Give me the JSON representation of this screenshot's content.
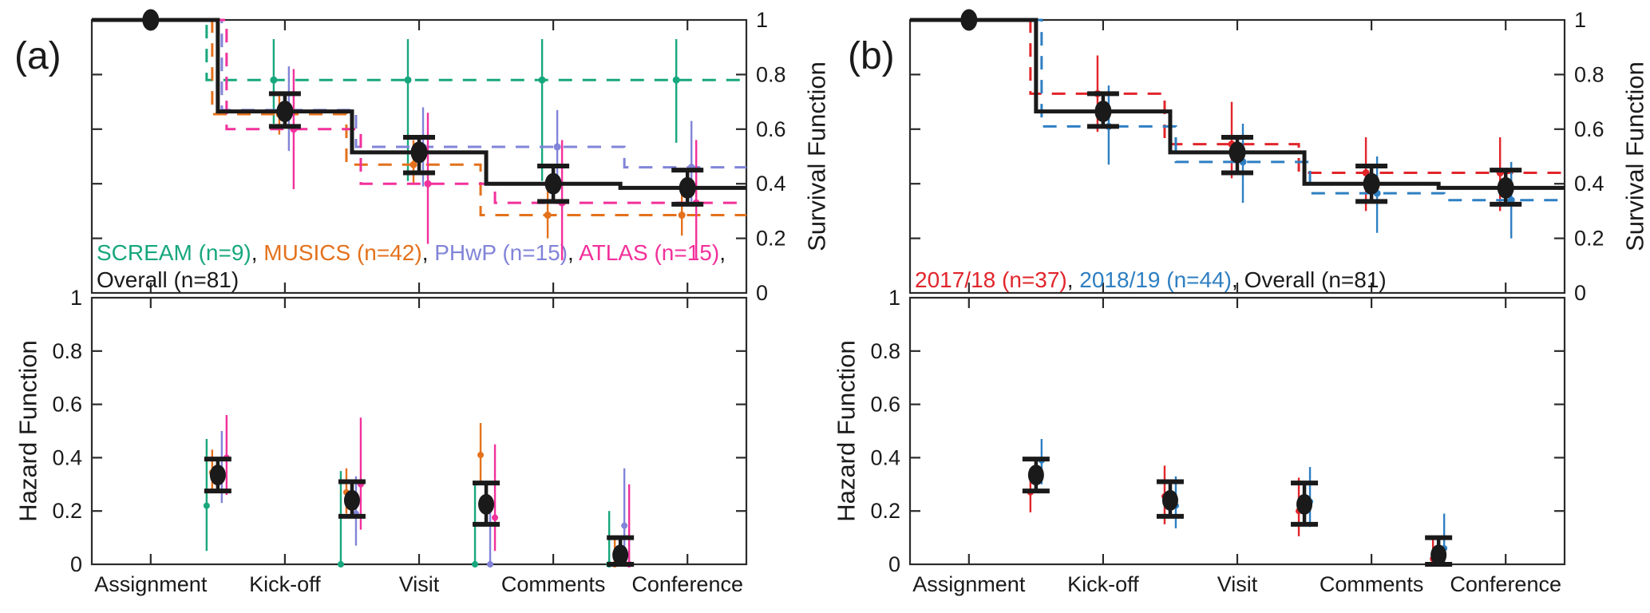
{
  "chart_data": {
    "type": "step-survival-with-hazard-errorbars",
    "description": "Two-panel figure; each panel has a Kaplan-Meier style step Survival Function (top) and discrete Hazard Function points with error bars (bottom).",
    "categories": [
      "Assignment",
      "Kick-off",
      "Visit",
      "Comments",
      "Conference"
    ],
    "ylim": [
      0,
      1
    ],
    "yticks": [
      0,
      0.2,
      0.4,
      0.6,
      0.8,
      1
    ],
    "ytick_labels": [
      "0",
      "0.2",
      "0.4",
      "0.6",
      "0.8",
      "1"
    ],
    "survival_ylabel": "Survival Function",
    "hazard_ylabel": "Hazard Function",
    "grid": false,
    "legend_position": "inside-bottom-left-of-survival-plot",
    "style": {
      "background": "#ffffff",
      "axis_color": "#2b2b2b",
      "text_color": "#1a1a1a",
      "green": "#17a77d",
      "orange": "#e4711c",
      "purple": "#8184d8",
      "magenta": "#f2309b",
      "red": "#e1252b",
      "blue": "#2e7fc2",
      "black": "#1a1a1a"
    },
    "panels": [
      {
        "label": "(a)",
        "legend_lines": [
          [
            {
              "text": "SCREAM (n=9)",
              "color": "#17a77d"
            },
            {
              "text": ", ",
              "color": "#1a1a1a"
            },
            {
              "text": "MUSICS (n=42)",
              "color": "#e4711c"
            },
            {
              "text": ", ",
              "color": "#1a1a1a"
            },
            {
              "text": "PHwP (n=15)",
              "color": "#8184d8"
            },
            {
              "text": ", ",
              "color": "#1a1a1a"
            },
            {
              "text": "ATLAS (n=15)",
              "color": "#f2309b"
            },
            {
              "text": ",",
              "color": "#1a1a1a"
            }
          ],
          [
            {
              "text": "Overall (n=81)",
              "color": "#1a1a1a"
            }
          ]
        ],
        "survival_series": [
          {
            "name": "SCREAM",
            "label": "SCREAM (n=9)",
            "color": "#17a77d",
            "dashed": true,
            "jitter": -14,
            "levels": [
              1,
              0.78,
              0.78,
              0.78,
              0.78
            ],
            "errors": [
              null,
              [
                0.62,
                0.93
              ],
              [
                0.41,
                0.93
              ],
              [
                0.41,
                0.93
              ],
              [
                0.55,
                0.93
              ]
            ]
          },
          {
            "name": "MUSICS",
            "label": "MUSICS (n=42)",
            "color": "#e4711c",
            "dashed": true,
            "jitter": -7,
            "levels": [
              1,
              0.655,
              0.47,
              0.285,
              0.285
            ],
            "errors": [
              null,
              [
                0.58,
                0.73
              ],
              [
                0.4,
                0.56
              ],
              [
                0.2,
                0.38
              ],
              [
                0.21,
                0.37
              ]
            ]
          },
          {
            "name": "PHwP",
            "label": "PHwP (n=15)",
            "color": "#8184d8",
            "dashed": true,
            "jitter": 5,
            "levels": [
              1,
              0.67,
              0.535,
              0.535,
              0.46
            ],
            "errors": [
              null,
              [
                0.52,
                0.83
              ],
              [
                0.39,
                0.68
              ],
              [
                0.42,
                0.67
              ],
              [
                0.33,
                0.63
              ]
            ]
          },
          {
            "name": "ATLAS",
            "label": "ATLAS (n=15)",
            "color": "#f2309b",
            "dashed": true,
            "jitter": 11,
            "levels": [
              1,
              0.6,
              0.4,
              0.33,
              0.33
            ],
            "errors": [
              null,
              [
                0.38,
                0.82
              ],
              [
                0.18,
                0.66
              ],
              [
                0.12,
                0.56
              ],
              [
                0.12,
                0.56
              ]
            ]
          },
          {
            "name": "Overall",
            "label": "Overall (n=81)",
            "color": "#1a1a1a",
            "dashed": false,
            "jitter": 0,
            "emphasis": true,
            "levels": [
              1,
              0.665,
              0.515,
              0.4,
              0.385
            ],
            "errors": [
              null,
              [
                0.61,
                0.73
              ],
              [
                0.44,
                0.57
              ],
              [
                0.335,
                0.465
              ],
              [
                0.325,
                0.45
              ]
            ]
          }
        ],
        "hazard_series": [
          {
            "name": "SCREAM",
            "color": "#17a77d",
            "jitter": -14,
            "values": [
              0.22,
              0.0,
              0.0,
              0.0
            ],
            "errors": [
              [
                0.05,
                0.47
              ],
              [
                0.0,
                0.35
              ],
              [
                0.0,
                0.3
              ],
              [
                0.0,
                0.2
              ]
            ]
          },
          {
            "name": "MUSICS",
            "color": "#e4711c",
            "jitter": -7,
            "values": [
              0.345,
              0.27,
              0.41,
              0.0
            ],
            "errors": [
              [
                0.27,
                0.43
              ],
              [
                0.19,
                0.36
              ],
              [
                0.3,
                0.53
              ],
              [
                0.0,
                0.1
              ]
            ]
          },
          {
            "name": "PHwP",
            "color": "#8184d8",
            "jitter": 5,
            "values": [
              0.33,
              0.19,
              0.0,
              0.145
            ],
            "errors": [
              [
                0.23,
                0.5
              ],
              [
                0.07,
                0.33
              ],
              [
                0.0,
                0.22
              ],
              [
                0.0,
                0.36
              ]
            ]
          },
          {
            "name": "ATLAS",
            "color": "#f2309b",
            "jitter": 11,
            "values": [
              0.4,
              0.3,
              0.175,
              0.0
            ],
            "errors": [
              [
                0.26,
                0.56
              ],
              [
                0.13,
                0.55
              ],
              [
                0.05,
                0.45
              ],
              [
                0.0,
                0.3
              ]
            ]
          },
          {
            "name": "Overall",
            "color": "#1a1a1a",
            "jitter": 0,
            "emphasis": true,
            "values": [
              0.335,
              0.24,
              0.225,
              0.035
            ],
            "errors": [
              [
                0.275,
                0.395
              ],
              [
                0.18,
                0.31
              ],
              [
                0.15,
                0.305
              ],
              [
                0.0,
                0.1
              ]
            ]
          }
        ]
      },
      {
        "label": "(b)",
        "legend_lines": [
          [
            {
              "text": "2017/18 (n=37)",
              "color": "#e1252b"
            },
            {
              "text": ", ",
              "color": "#1a1a1a"
            },
            {
              "text": "2018/19 (n=44)",
              "color": "#2e7fc2"
            },
            {
              "text": ", ",
              "color": "#1a1a1a"
            },
            {
              "text": "Overall (n=81)",
              "color": "#1a1a1a"
            }
          ]
        ],
        "survival_series": [
          {
            "name": "2017-18",
            "label": "2017/18 (n=37)",
            "color": "#e1252b",
            "dashed": true,
            "jitter": -7,
            "levels": [
              1,
              0.73,
              0.545,
              0.44,
              0.44
            ],
            "errors": [
              null,
              [
                0.59,
                0.87
              ],
              [
                0.42,
                0.7
              ],
              [
                0.3,
                0.57
              ],
              [
                0.3,
                0.57
              ]
            ]
          },
          {
            "name": "2018-19",
            "label": "2018/19 (n=44)",
            "color": "#2e7fc2",
            "dashed": true,
            "jitter": 7,
            "levels": [
              1,
              0.61,
              0.48,
              0.365,
              0.34
            ],
            "errors": [
              null,
              [
                0.47,
                0.76
              ],
              [
                0.33,
                0.62
              ],
              [
                0.22,
                0.5
              ],
              [
                0.2,
                0.48
              ]
            ]
          },
          {
            "name": "Overall",
            "label": "Overall (n=81)",
            "color": "#1a1a1a",
            "dashed": false,
            "jitter": 0,
            "emphasis": true,
            "levels": [
              1,
              0.665,
              0.515,
              0.4,
              0.385
            ],
            "errors": [
              null,
              [
                0.61,
                0.73
              ],
              [
                0.44,
                0.57
              ],
              [
                0.335,
                0.465
              ],
              [
                0.325,
                0.45
              ]
            ]
          }
        ],
        "hazard_series": [
          {
            "name": "2017-18",
            "color": "#e1252b",
            "jitter": -7,
            "values": [
              0.27,
              0.255,
              0.2,
              0.02
            ],
            "errors": [
              [
                0.195,
                0.36
              ],
              [
                0.15,
                0.37
              ],
              [
                0.105,
                0.325
              ],
              [
                0.0,
                0.105
              ]
            ]
          },
          {
            "name": "2018-19",
            "color": "#2e7fc2",
            "jitter": 7,
            "values": [
              0.39,
              0.22,
              0.235,
              0.06
            ],
            "errors": [
              [
                0.3,
                0.47
              ],
              [
                0.135,
                0.33
              ],
              [
                0.14,
                0.365
              ],
              [
                0.0,
                0.19
              ]
            ]
          },
          {
            "name": "Overall",
            "color": "#1a1a1a",
            "jitter": 0,
            "emphasis": true,
            "values": [
              0.335,
              0.24,
              0.225,
              0.035
            ],
            "errors": [
              [
                0.275,
                0.395
              ],
              [
                0.18,
                0.31
              ],
              [
                0.15,
                0.305
              ],
              [
                0.0,
                0.1
              ]
            ]
          }
        ]
      }
    ]
  }
}
